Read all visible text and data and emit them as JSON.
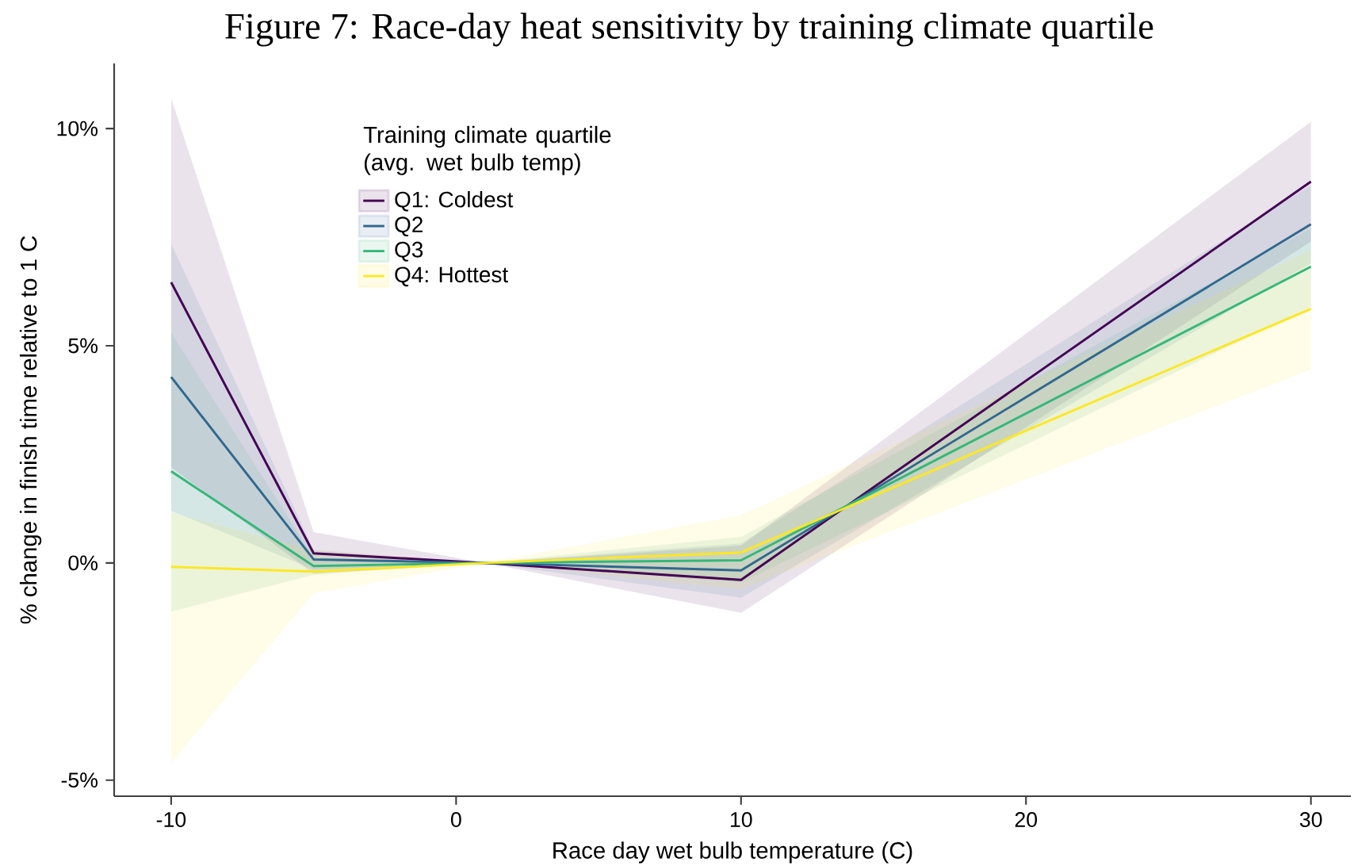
{
  "chart_data": {
    "type": "line",
    "title": "Figure 7: Race-day heat sensitivity by training climate quartile",
    "xlabel": "Race day wet bulb temperature (C)",
    "ylabel": "% change in finish time relative to 1 C",
    "legend_title": "Training climate quartile (avg. wet bulb temp)",
    "legend": "top left",
    "x": [
      -10,
      -5,
      1,
      10,
      30
    ],
    "series": [
      {
        "name": "Q1: Coldest",
        "color": "#440154",
        "values": [
          6.46,
          0.22,
          0,
          -0.39,
          8.78
        ],
        "lower": [
          2.2,
          -0.25,
          0,
          -1.15,
          7.4
        ],
        "upper": [
          10.7,
          0.71,
          0,
          0.4,
          10.16
        ]
      },
      {
        "name": "Q2",
        "color": "#31688e",
        "values": [
          4.28,
          0.08,
          0,
          -0.17,
          7.8
        ],
        "lower": [
          1.2,
          -0.15,
          0,
          -0.8,
          6.9
        ],
        "upper": [
          7.35,
          0.3,
          0,
          0.45,
          8.7
        ]
      },
      {
        "name": "Q3",
        "color": "#35b779",
        "values": [
          2.11,
          -0.07,
          0,
          0.06,
          6.82
        ],
        "lower": [
          -1.12,
          -0.27,
          0,
          -0.45,
          5.9
        ],
        "upper": [
          5.3,
          0.13,
          0,
          0.6,
          7.7
        ]
      },
      {
        "name": "Q4: Hottest",
        "color": "#fde725",
        "values": [
          -0.09,
          -0.2,
          0,
          0.24,
          5.85
        ],
        "lower": [
          -4.6,
          -0.7,
          0,
          -0.6,
          4.45
        ],
        "upper": [
          1.16,
          0.3,
          0,
          1.1,
          7.2
        ]
      }
    ],
    "xlim": [
      -12,
      31.4
    ],
    "ylim": [
      -5.37,
      11.5
    ],
    "xticks": [
      -10,
      0,
      10,
      20,
      30
    ],
    "yticks": [
      {
        "value": -5,
        "label": "-5%"
      },
      {
        "value": 0,
        "label": "0%"
      },
      {
        "value": 5,
        "label": "5%"
      },
      {
        "value": 10,
        "label": "10%"
      }
    ]
  }
}
